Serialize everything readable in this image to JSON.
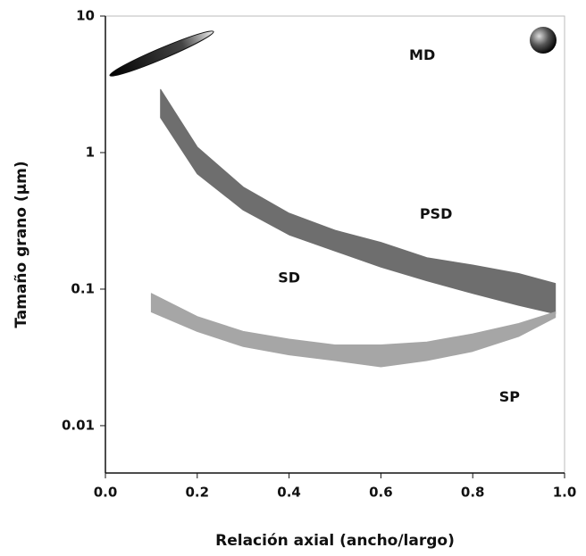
{
  "chart_data": {
    "type": "band",
    "xlabel": "Relación axial (ancho/largo)",
    "ylabel": "Tamaño grano (µm)",
    "xlim": [
      0,
      1
    ],
    "ylim": [
      0.0045,
      10
    ],
    "yscale": "log",
    "xticks": [
      {
        "value": 0,
        "label": "0.0"
      },
      0.2,
      0.4,
      0.6,
      0.8,
      {
        "value": 1,
        "label": "1.0"
      }
    ],
    "yticks": [
      10,
      1,
      0.1,
      0.01
    ],
    "series": [
      {
        "color": "#6e6e6e",
        "x": [
          0.12,
          0.2,
          0.3,
          0.4,
          0.5,
          0.6,
          0.7,
          0.8,
          0.9,
          0.98
        ],
        "upper": [
          2.9,
          1.1,
          0.56,
          0.36,
          0.27,
          0.22,
          0.17,
          0.15,
          0.13,
          0.11
        ],
        "lower": [
          1.8,
          0.7,
          0.38,
          0.25,
          0.19,
          0.145,
          0.115,
          0.093,
          0.076,
          0.066
        ]
      },
      {
        "color": "#a6a6a6",
        "x": [
          0.1,
          0.2,
          0.3,
          0.4,
          0.5,
          0.6,
          0.7,
          0.8,
          0.9,
          0.98
        ],
        "upper": [
          0.093,
          0.063,
          0.049,
          0.043,
          0.039,
          0.039,
          0.041,
          0.047,
          0.056,
          0.068
        ],
        "lower": [
          0.068,
          0.049,
          0.038,
          0.033,
          0.03,
          0.027,
          0.03,
          0.035,
          0.045,
          0.062
        ]
      }
    ],
    "annotations": [
      {
        "text": "MD",
        "x": 0.69,
        "y": 5.1
      },
      {
        "text": "PSD",
        "x": 0.72,
        "y": 0.35
      },
      {
        "text": "SD",
        "x": 0.4,
        "y": 0.12
      },
      {
        "text": "SP",
        "x": 0.88,
        "y": 0.016
      }
    ]
  }
}
